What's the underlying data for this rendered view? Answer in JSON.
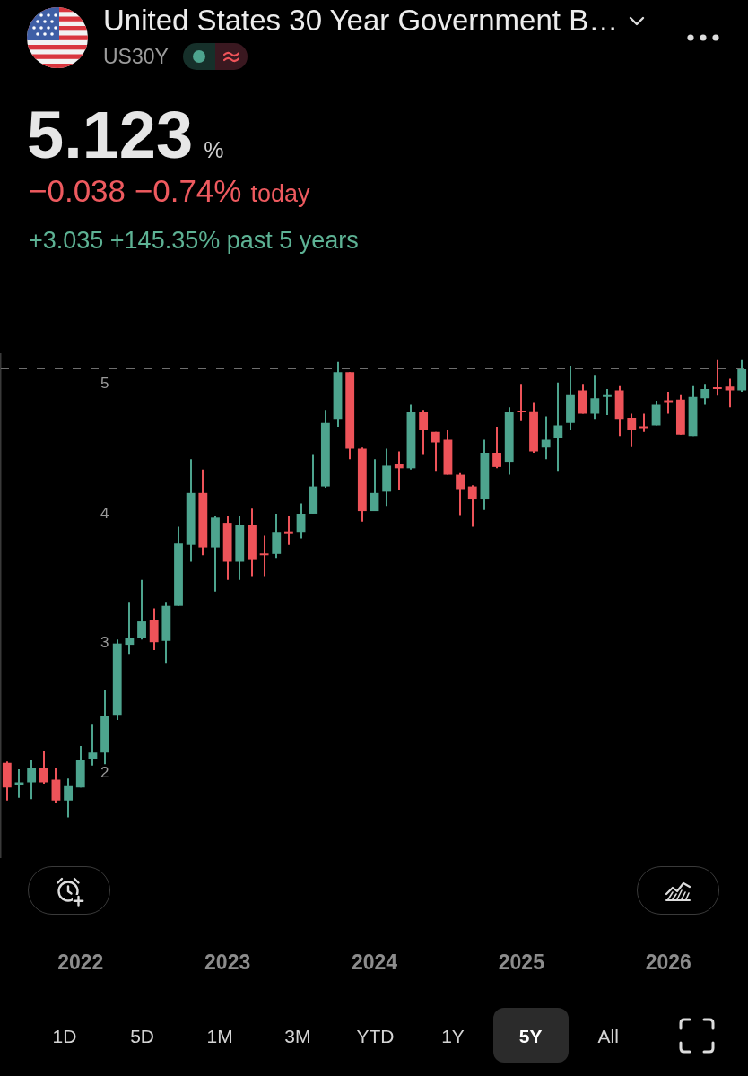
{
  "chart_data": {
    "type": "candlestick",
    "title": "United States 30 Year Government B…",
    "subtitle": "US30Y",
    "annotations": [
      "5.123",
      "%",
      "−0.038 −0.74%",
      "today",
      "+3.035 +145.35% past 5 years",
      "1D",
      "5D",
      "1M",
      "3M",
      "YTD",
      "1Y",
      "5Y",
      "All"
    ],
    "categories": [
      null,
      null,
      null,
      null,
      null,
      null,
      "2022",
      null,
      null,
      null,
      null,
      null,
      null,
      null,
      null,
      null,
      null,
      null,
      "2023",
      null,
      null,
      null,
      null,
      null,
      null,
      null,
      null,
      null,
      null,
      null,
      "2024",
      null,
      null,
      null,
      null,
      null,
      null,
      null,
      null,
      null,
      null,
      null,
      "2025",
      null,
      null,
      null,
      null,
      null,
      null,
      null,
      null,
      null,
      null,
      null,
      "2026",
      null,
      null,
      null,
      null,
      null,
      null
    ],
    "ohlc": [
      [
        2.08,
        2.09,
        1.79,
        1.89
      ],
      [
        1.91,
        2.03,
        1.81,
        1.93
      ],
      [
        1.93,
        2.1,
        1.8,
        2.04
      ],
      [
        2.04,
        2.17,
        1.92,
        1.93
      ],
      [
        1.95,
        2.04,
        1.77,
        1.79
      ],
      [
        1.79,
        1.96,
        1.66,
        1.9
      ],
      [
        1.89,
        2.21,
        1.89,
        2.1
      ],
      [
        2.11,
        2.38,
        2.06,
        2.16
      ],
      [
        2.16,
        2.64,
        2.07,
        2.44
      ],
      [
        2.45,
        3.03,
        2.41,
        3.0
      ],
      [
        2.99,
        3.32,
        2.92,
        3.04
      ],
      [
        3.04,
        3.49,
        3.03,
        3.17
      ],
      [
        3.18,
        3.27,
        2.95,
        3.01
      ],
      [
        3.02,
        3.32,
        2.85,
        3.29
      ],
      [
        3.29,
        3.9,
        3.29,
        3.77
      ],
      [
        3.76,
        4.42,
        3.63,
        4.16
      ],
      [
        4.16,
        4.34,
        3.68,
        3.74
      ],
      [
        3.74,
        3.98,
        3.4,
        3.97
      ],
      [
        3.93,
        3.98,
        3.49,
        3.63
      ],
      [
        3.63,
        3.98,
        3.49,
        3.91
      ],
      [
        3.91,
        4.04,
        3.52,
        3.65
      ],
      [
        3.69,
        3.83,
        3.52,
        3.68
      ],
      [
        3.69,
        4.0,
        3.66,
        3.86
      ],
      [
        3.86,
        3.98,
        3.76,
        3.85
      ],
      [
        3.86,
        4.08,
        3.81,
        4.0
      ],
      [
        4.0,
        4.46,
        4.0,
        4.21
      ],
      [
        4.21,
        4.8,
        4.2,
        4.7
      ],
      [
        4.73,
        5.17,
        4.67,
        5.09
      ],
      [
        5.09,
        5.09,
        4.42,
        4.5
      ],
      [
        4.5,
        4.51,
        3.94,
        4.02
      ],
      [
        4.02,
        4.42,
        4.02,
        4.16
      ],
      [
        4.17,
        4.5,
        4.06,
        4.37
      ],
      [
        4.38,
        4.48,
        4.18,
        4.35
      ],
      [
        4.35,
        4.84,
        4.34,
        4.78
      ],
      [
        4.78,
        4.8,
        4.46,
        4.65
      ],
      [
        4.63,
        4.63,
        4.33,
        4.55
      ],
      [
        4.57,
        4.65,
        4.3,
        4.3
      ],
      [
        4.3,
        4.32,
        3.99,
        4.19
      ],
      [
        4.21,
        4.22,
        3.9,
        4.11
      ],
      [
        4.11,
        4.57,
        4.03,
        4.47
      ],
      [
        4.47,
        4.67,
        4.35,
        4.36
      ],
      [
        4.4,
        4.82,
        4.3,
        4.78
      ],
      [
        4.79,
        5.0,
        4.72,
        4.78
      ],
      [
        4.79,
        4.86,
        4.47,
        4.48
      ],
      [
        4.51,
        4.75,
        4.42,
        4.57
      ],
      [
        4.58,
        5.01,
        4.33,
        4.68
      ],
      [
        4.7,
        5.14,
        4.65,
        4.92
      ],
      [
        4.95,
        5.0,
        4.77,
        4.77
      ],
      [
        4.77,
        5.07,
        4.73,
        4.89
      ],
      [
        4.9,
        4.96,
        4.76,
        4.92
      ],
      [
        4.95,
        4.99,
        4.6,
        4.73
      ],
      [
        4.74,
        4.77,
        4.52,
        4.65
      ],
      [
        4.67,
        4.77,
        4.63,
        4.66
      ],
      [
        4.68,
        4.87,
        4.68,
        4.84
      ],
      [
        4.87,
        4.94,
        4.77,
        4.86
      ],
      [
        4.88,
        4.92,
        4.61,
        4.61
      ],
      [
        4.6,
        4.99,
        4.6,
        4.9
      ],
      [
        4.89,
        5.0,
        4.84,
        4.96
      ],
      [
        4.97,
        5.19,
        4.91,
        4.96
      ],
      [
        4.98,
        5.04,
        4.82,
        4.95
      ],
      [
        4.95,
        5.19,
        4.94,
        5.12
      ]
    ],
    "colors": [
      "#ee5359",
      "#4da48e",
      "#4da48e",
      "#ee5359",
      "#ee5359",
      "#4da48e",
      "#4da48e",
      "#4da48e",
      "#4da48e",
      "#4da48e",
      "#4da48e",
      "#4da48e",
      "#ee5359",
      "#4da48e",
      "#4da48e",
      "#4da48e",
      "#ee5359",
      "#4da48e",
      "#ee5359",
      "#4da48e",
      "#ee5359",
      "#ee5359",
      "#4da48e",
      "#ee5359",
      "#4da48e",
      "#4da48e",
      "#4da48e",
      "#4da48e",
      "#ee5359",
      "#ee5359",
      "#4da48e",
      "#4da48e",
      "#ee5359",
      "#4da48e",
      "#ee5359",
      "#ee5359",
      "#ee5359",
      "#ee5359",
      "#ee5359",
      "#4da48e",
      "#ee5359",
      "#4da48e",
      "#ee5359",
      "#ee5359",
      "#4da48e",
      "#4da48e",
      "#4da48e",
      "#ee5359",
      "#4da48e",
      "#4da48e",
      "#ee5359",
      "#ee5359",
      "#ee5359",
      "#4da48e",
      "#ee5359",
      "#ee5359",
      "#4da48e",
      "#4da48e",
      "#ee5359",
      "#ee5359",
      "#4da48e"
    ],
    "ylim": [
      1.35,
      5.23
    ],
    "yticks": [
      2,
      3,
      4,
      5
    ],
    "ref_lines": [
      {
        "axis": "y",
        "value": 5.123,
        "color": "#6e6e6e",
        "line_style": "dashed"
      }
    ]
  }
}
